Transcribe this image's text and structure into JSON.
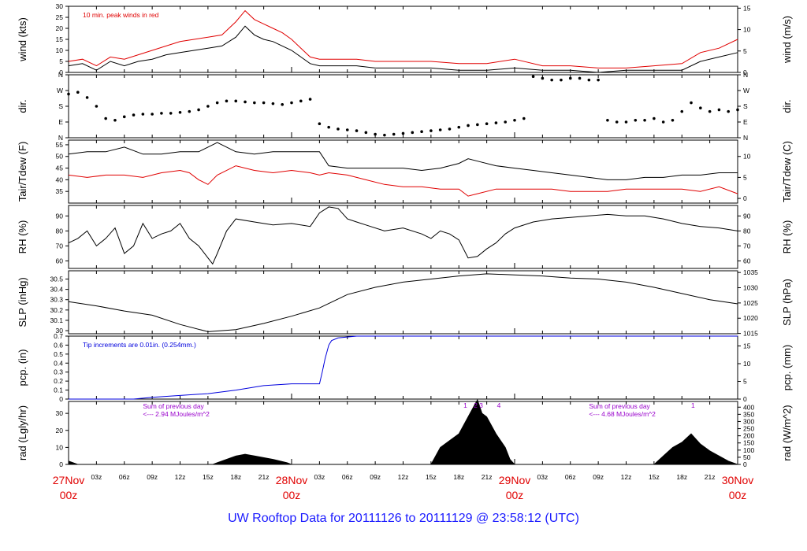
{
  "title": "UW Rooftop Data for 20111126  to  20111129 @ 23:58:12  (UTC)",
  "colors": {
    "title": "#1a1aff",
    "date": "#e00000",
    "red": "#e00000",
    "blue": "#0000dd",
    "purple": "#9900cc",
    "black": "#000000"
  },
  "x_axis": {
    "hour_labels": [
      "03z",
      "06z",
      "09z",
      "12z",
      "15z",
      "18z",
      "21z",
      "03z",
      "06z",
      "09z",
      "12z",
      "15z",
      "18z",
      "21z",
      "03z",
      "06z",
      "09z",
      "12z",
      "15z",
      "18z",
      "21z"
    ],
    "hour_positions": [
      3,
      6,
      9,
      12,
      15,
      18,
      21,
      27,
      30,
      33,
      36,
      39,
      42,
      45,
      51,
      54,
      57,
      60,
      63,
      66,
      69
    ],
    "day_labels": [
      {
        "day": "27Nov",
        "hour": "00z",
        "x": 0
      },
      {
        "day": "28Nov",
        "hour": "00z",
        "x": 24
      },
      {
        "day": "29Nov",
        "hour": "00z",
        "x": 48
      },
      {
        "day": "30Nov",
        "hour": "00z",
        "x": 72
      }
    ],
    "range_hours": [
      0,
      72
    ]
  },
  "chart_data": [
    {
      "type": "line",
      "ylabel": "wind (kts)",
      "ylabel_right": "wind (m/s)",
      "ylim": [
        0,
        30
      ],
      "yticks": [
        0,
        5,
        10,
        15,
        20,
        25,
        30
      ],
      "right_ticks": [
        0,
        5,
        10,
        15
      ],
      "right_scale": 0.5144,
      "annotation": "10 min. peak winds in red",
      "series": [
        {
          "x": [
            0,
            1.5,
            3,
            4.5,
            6,
            7.5,
            9,
            10.5,
            12,
            13.5,
            15,
            16.5,
            18,
            19,
            20,
            21,
            22,
            23,
            24,
            25,
            26,
            27,
            29,
            31,
            33,
            36,
            39,
            42,
            45,
            48,
            51,
            54,
            57,
            60,
            63,
            66,
            68,
            70,
            72
          ],
          "values": [
            3,
            4,
            1,
            5,
            3,
            5,
            6,
            8,
            9,
            10,
            11,
            12,
            16,
            21,
            17,
            15,
            14,
            12,
            10,
            7,
            4,
            3,
            3,
            3,
            2,
            2,
            2,
            1,
            1,
            2,
            1,
            1,
            0,
            1,
            1,
            1,
            5,
            7,
            9
          ]
        },
        {
          "x": [
            0,
            1.5,
            3,
            4.5,
            6,
            7.5,
            9,
            10.5,
            12,
            13.5,
            15,
            16.5,
            18,
            19,
            20,
            21,
            22,
            23,
            24,
            25,
            26,
            27,
            29,
            31,
            33,
            36,
            39,
            42,
            45,
            48,
            51,
            54,
            57,
            60,
            63,
            66,
            68,
            70,
            72
          ],
          "values": [
            5,
            6,
            3,
            7,
            6,
            8,
            10,
            12,
            14,
            15,
            16,
            17,
            23,
            28,
            24,
            22,
            20,
            18,
            15,
            11,
            7,
            6,
            6,
            6,
            5,
            5,
            5,
            4,
            4,
            6,
            3,
            3,
            2,
            2,
            3,
            4,
            9,
            11,
            15
          ]
        }
      ]
    },
    {
      "type": "scatter",
      "ylabel": "dir.",
      "ylabel_right": "dir.",
      "ytick_labels": [
        "N",
        "E",
        "S",
        "W",
        "N"
      ],
      "ylim": [
        0,
        360
      ],
      "x": [
        0,
        1,
        2,
        3,
        4,
        5,
        6,
        7,
        8,
        9,
        10,
        11,
        12,
        13,
        14,
        15,
        16,
        17,
        18,
        19,
        20,
        21,
        22,
        23,
        24,
        25,
        26,
        27,
        28,
        29,
        30,
        31,
        32,
        33,
        34,
        35,
        36,
        37,
        38,
        39,
        40,
        41,
        42,
        43,
        44,
        45,
        46,
        47,
        48,
        49,
        50,
        51,
        52,
        53,
        54,
        55,
        56,
        57,
        58,
        59,
        60,
        61,
        62,
        63,
        64,
        65,
        66,
        67,
        68,
        69,
        70,
        71,
        72
      ],
      "values": [
        250,
        260,
        230,
        180,
        110,
        100,
        120,
        130,
        135,
        135,
        140,
        140,
        145,
        150,
        160,
        180,
        200,
        210,
        210,
        205,
        200,
        200,
        195,
        190,
        200,
        210,
        220,
        80,
        60,
        50,
        45,
        40,
        30,
        20,
        15,
        20,
        25,
        30,
        35,
        40,
        45,
        50,
        60,
        70,
        75,
        80,
        85,
        90,
        100,
        110,
        350,
        340,
        330,
        330,
        340,
        340,
        330,
        330,
        100,
        90,
        90,
        100,
        100,
        110,
        90,
        100,
        150,
        200,
        170,
        150,
        160,
        150,
        160
      ]
    },
    {
      "type": "line",
      "ylabel": "Tair/Tdew (F)",
      "ylabel_right": "Tair/Tdew (C)",
      "ylim": [
        30,
        57
      ],
      "yticks": [
        35,
        40,
        45,
        50,
        55
      ],
      "right_ticks": [
        0,
        5,
        10
      ],
      "series": [
        {
          "x": [
            0,
            2,
            4,
            6,
            8,
            10,
            12,
            14,
            15,
            16,
            18,
            20,
            22,
            24,
            26,
            27,
            28,
            30,
            32,
            34,
            36,
            38,
            40,
            42,
            43,
            44,
            46,
            48,
            50,
            52,
            54,
            56,
            58,
            60,
            62,
            64,
            66,
            68,
            70,
            72
          ],
          "values": [
            51,
            52,
            52,
            54,
            51,
            51,
            52,
            52,
            54,
            56,
            52,
            51,
            52,
            52,
            52,
            52,
            46,
            45,
            45,
            45,
            45,
            44,
            45,
            47,
            49,
            48,
            46,
            45,
            44,
            43,
            42,
            41,
            40,
            40,
            41,
            41,
            42,
            42,
            43,
            43
          ]
        },
        {
          "x": [
            0,
            2,
            4,
            6,
            8,
            10,
            12,
            13,
            14,
            15,
            16,
            18,
            20,
            22,
            24,
            26,
            27,
            28,
            30,
            32,
            34,
            36,
            38,
            40,
            42,
            43,
            44,
            46,
            48,
            50,
            52,
            54,
            56,
            58,
            60,
            62,
            64,
            66,
            68,
            70,
            72
          ],
          "values": [
            42,
            41,
            42,
            42,
            41,
            43,
            44,
            43,
            40,
            38,
            42,
            46,
            44,
            43,
            44,
            43,
            42,
            43,
            42,
            40,
            38,
            37,
            37,
            36,
            36,
            33,
            34,
            36,
            36,
            36,
            36,
            35,
            35,
            35,
            36,
            36,
            36,
            36,
            35,
            37,
            34
          ]
        }
      ]
    },
    {
      "type": "line",
      "ylabel": "RH (%)",
      "ylabel_right": "RH (%)",
      "ylim": [
        55,
        97
      ],
      "yticks": [
        60,
        70,
        80,
        90
      ],
      "right_ticks": [
        60,
        70,
        80,
        90
      ],
      "series": [
        {
          "x": [
            0,
            1,
            2,
            3,
            4,
            5,
            6,
            7,
            8,
            9,
            10,
            11,
            12,
            13,
            14,
            15,
            15.5,
            16,
            17,
            18,
            20,
            22,
            24,
            26,
            27,
            28,
            29,
            30,
            31,
            32,
            34,
            36,
            38,
            39,
            40,
            41,
            42,
            43,
            44,
            45,
            46,
            47,
            48,
            50,
            52,
            54,
            56,
            58,
            60,
            62,
            64,
            66,
            68,
            70,
            72
          ],
          "values": [
            72,
            75,
            80,
            70,
            75,
            82,
            65,
            70,
            85,
            75,
            78,
            80,
            85,
            75,
            70,
            62,
            58,
            65,
            80,
            88,
            86,
            84,
            85,
            83,
            92,
            96,
            95,
            88,
            86,
            84,
            80,
            82,
            78,
            75,
            80,
            78,
            74,
            62,
            63,
            68,
            72,
            78,
            82,
            86,
            88,
            89,
            90,
            91,
            90,
            90,
            88,
            85,
            83,
            82,
            80
          ]
        }
      ]
    },
    {
      "type": "line",
      "ylabel": "SLP (inHg)",
      "ylabel_right": "SLP (hPa)",
      "ylim": [
        29.97,
        30.58
      ],
      "yticks": [
        30.0,
        30.1,
        30.2,
        30.3,
        30.4,
        30.5
      ],
      "right_ticks": [
        1015,
        1020,
        1025,
        1030,
        1035
      ],
      "series": [
        {
          "x": [
            0,
            3,
            6,
            9,
            12,
            15,
            18,
            21,
            24,
            27,
            30,
            33,
            36,
            39,
            42,
            45,
            48,
            51,
            54,
            57,
            60,
            63,
            66,
            69,
            72
          ],
          "values": [
            30.28,
            30.24,
            30.19,
            30.15,
            30.06,
            29.99,
            30.01,
            30.07,
            30.14,
            30.22,
            30.35,
            30.42,
            30.47,
            30.5,
            30.53,
            30.55,
            30.54,
            30.53,
            30.51,
            30.5,
            30.47,
            30.42,
            30.36,
            30.3,
            30.26
          ]
        }
      ]
    },
    {
      "type": "line",
      "ylabel": "pcp. (in)",
      "ylabel_right": "pcp. (mm)",
      "ylim": [
        0,
        0.7
      ],
      "yticks": [
        0.0,
        0.1,
        0.2,
        0.3,
        0.4,
        0.5,
        0.6,
        0.7
      ],
      "right_ticks": [
        0,
        5,
        10,
        15
      ],
      "annotation": "Tip increments are 0.01in. (0.254mm.)",
      "series": [
        {
          "x": [
            0,
            7,
            9,
            12,
            15,
            18,
            21,
            24,
            26,
            27,
            27.3,
            27.6,
            28,
            28.3,
            29,
            31,
            72
          ],
          "values": [
            0,
            0,
            0.02,
            0.04,
            0.06,
            0.1,
            0.15,
            0.17,
            0.17,
            0.17,
            0.3,
            0.45,
            0.6,
            0.65,
            0.68,
            0.7,
            0.7
          ]
        }
      ]
    },
    {
      "type": "area",
      "ylabel": "rad (Lgly/hr)",
      "ylabel_right": "rad (W/m^2)",
      "ylim": [
        0,
        37
      ],
      "yticks": [
        0,
        10,
        20,
        30
      ],
      "right_ticks": [
        0,
        50,
        100,
        150,
        200,
        250,
        300,
        350,
        400
      ],
      "annotations": [
        {
          "text": "Sum of previous day",
          "x": 8,
          "row": 1
        },
        {
          "text": "<--- 2.94 MJoules/m^2",
          "x": 8,
          "row": 2
        },
        {
          "text": "Sum of previous day",
          "x": 56,
          "row": 1
        },
        {
          "text": "<--- 4.68 MJoules/m^2",
          "x": 56,
          "row": 2
        },
        {
          "text": "1",
          "x": 42.7,
          "row": 0
        },
        {
          "text": "2",
          "x": 43.8,
          "row": 0
        },
        {
          "text": "3",
          "x": 44.4,
          "row": 0
        },
        {
          "text": "4",
          "x": 46.3,
          "row": 0
        },
        {
          "text": "1",
          "x": 67.2,
          "row": 0
        }
      ],
      "series": [
        {
          "x": [
            0,
            1,
            15.5,
            16,
            17,
            18,
            19,
            20,
            22,
            23.5,
            24,
            39,
            40,
            41,
            42,
            43,
            44,
            44.5,
            45,
            46,
            47,
            47.5,
            48,
            63,
            64,
            65,
            66,
            67,
            68,
            69,
            70,
            71,
            72
          ],
          "values": [
            2,
            0,
            0,
            1,
            3,
            5,
            6,
            5,
            3,
            1,
            0,
            0,
            10,
            14,
            18,
            28,
            38,
            30,
            28,
            18,
            10,
            3,
            0,
            0,
            5,
            10,
            13,
            18,
            12,
            8,
            5,
            2,
            0
          ]
        }
      ]
    }
  ]
}
